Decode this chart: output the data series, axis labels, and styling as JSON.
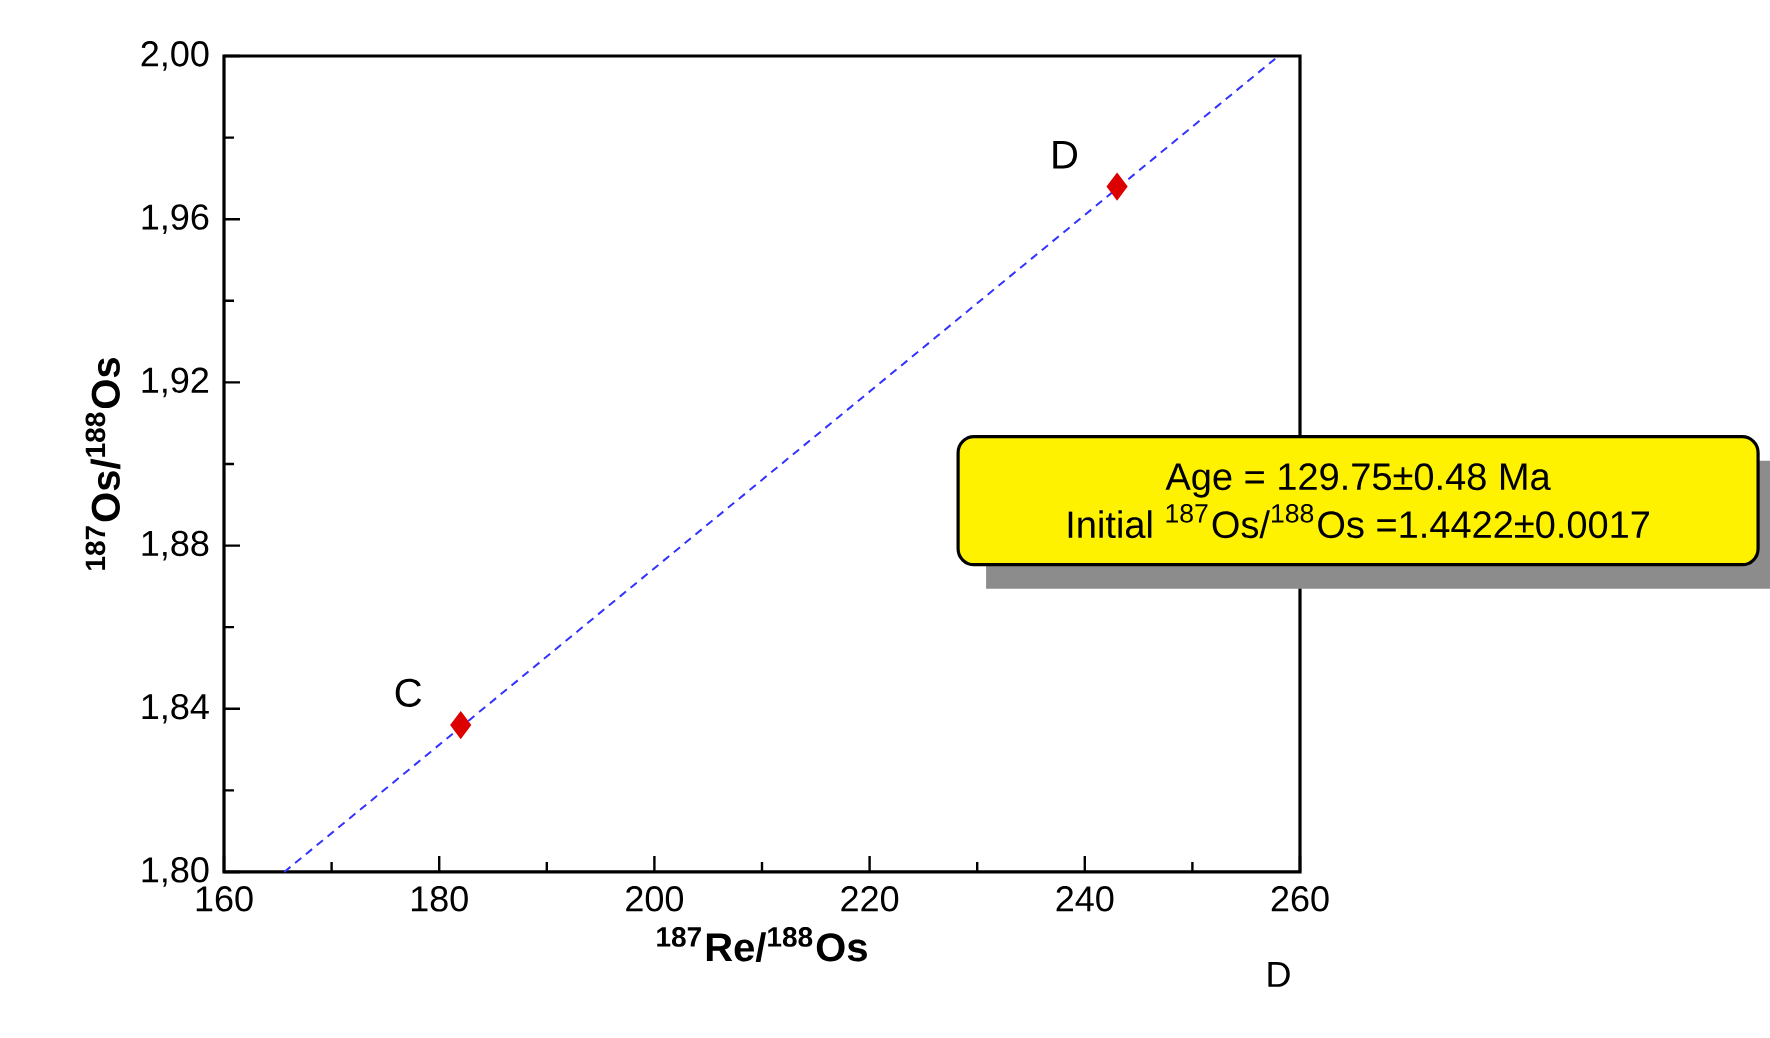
{
  "chart_data": {
    "type": "scatter",
    "xlabel": "$^{187}$Re/$^{188}$Os",
    "ylabel": "$^{187}$Os/$^{188}$Os",
    "xlim": [
      160,
      260
    ],
    "xticks": [
      160,
      180,
      200,
      220,
      240,
      260
    ],
    "ylim": [
      1.8,
      2.0
    ],
    "yticks": [
      {
        "value": 1.8,
        "label": "1,80"
      },
      {
        "value": 1.84,
        "label": "1,84"
      },
      {
        "value": 1.88,
        "label": "1,88"
      },
      {
        "value": 1.92,
        "label": "1,92"
      },
      {
        "value": 1.96,
        "label": "1,96"
      },
      {
        "value": 2.0,
        "label": "2,00"
      }
    ],
    "series": [
      {
        "type": "line",
        "color": "#3333ff",
        "line_style": "dashed",
        "x": [
          165.6,
          258.0
        ],
        "values": [
          1.8,
          2.0
        ]
      },
      {
        "type": "scatter",
        "color": "#dd0000",
        "marker": "diamond",
        "x": [
          182,
          243
        ],
        "values": [
          1.836,
          1.968
        ]
      }
    ],
    "annotations": [
      "Age = 129.75±0.48 Ma",
      "Initial $^{187}$Os/$^{188}$Os =1.4422±0.0017",
      "D",
      {
        "text": "C",
        "x": 182,
        "y": 1.836
      },
      {
        "text": "D",
        "x": 243,
        "y": 1.968
      }
    ],
    "grid": false
  }
}
